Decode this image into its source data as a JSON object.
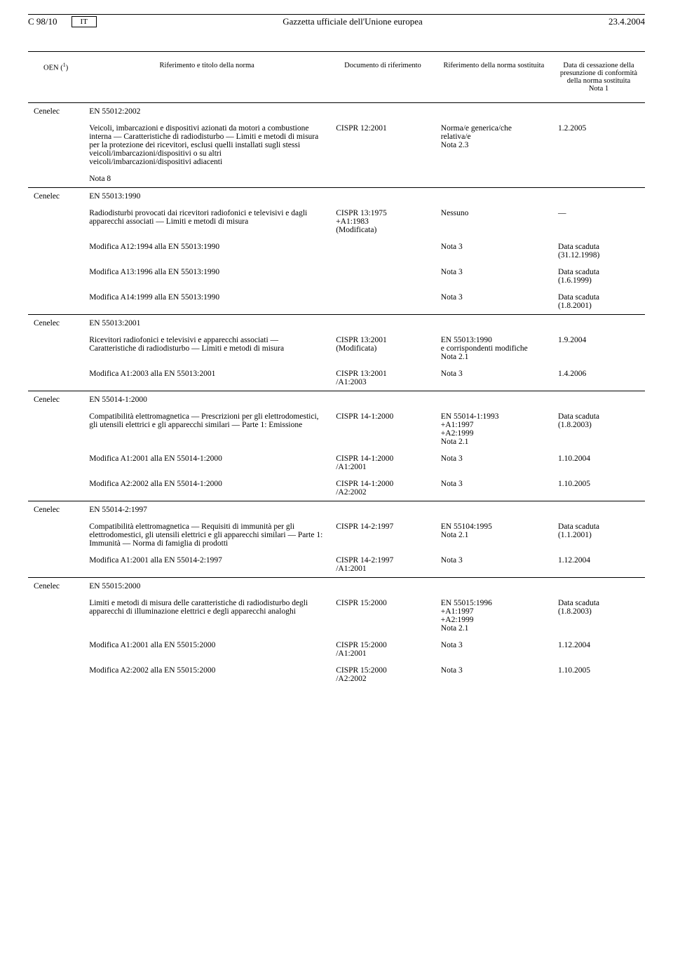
{
  "header": {
    "pageRef": "C 98/10",
    "lang": "IT",
    "journal": "Gazzetta ufficiale dell'Unione europea",
    "date": "23.4.2004"
  },
  "columns": {
    "oen": "OEN (",
    "oenSup": "1",
    "oenClose": ")",
    "title": "Riferimento e titolo della norma",
    "docref": "Documento di riferimento",
    "norma": "Riferimento della norma sostituita",
    "data": "Data di cessazione della presunzione di conformità della norma sostituita",
    "dataNote": "Nota 1"
  },
  "sections": [
    {
      "oen": "Cenelec",
      "standard": "EN 55012:2002",
      "rows": [
        {
          "title": "Veicoli, imbarcazioni e dispositivi azionati da motori a combustione interna — Caratteristiche di radiodisturbo — Limiti e metodi di misura per la protezione dei ricevitori, esclusi quelli installati sugli stessi veicoli/imbarcazioni/dispositivi o su altri veicoli/imbarcazioni/dispositivi adiacenti",
          "docref": "CISPR 12:2001",
          "norma": "Norma/e generica/che relativa/e Nota 2.3",
          "data": "1.2.2005"
        }
      ],
      "note": "Nota 8"
    },
    {
      "oen": "Cenelec",
      "standard": "EN 55013:1990",
      "rows": [
        {
          "title": "Radiodisturbi provocati dai ricevitori radiofonici e televisivi e dagli apparecchi associati — Limiti e metodi di misura",
          "docref": "CISPR 13:1975 +A1:1983 (Modificata)",
          "norma": "Nessuno",
          "data": "—"
        },
        {
          "title": "Modifica A12:1994 alla EN 55013:1990",
          "docref": "",
          "norma": "Nota 3",
          "data": "Data scaduta (31.12.1998)"
        },
        {
          "title": "Modifica A13:1996 alla EN 55013:1990",
          "docref": "",
          "norma": "Nota 3",
          "data": "Data scaduta (1.6.1999)"
        },
        {
          "title": "Modifica A14:1999 alla EN 55013:1990",
          "docref": "",
          "norma": "Nota 3",
          "data": "Data scaduta (1.8.2001)"
        }
      ]
    },
    {
      "oen": "Cenelec",
      "standard": "EN 55013:2001",
      "rows": [
        {
          "title": "Ricevitori radiofonici e televisivi e apparecchi associati — Caratteristiche di radiodisturbo — Limiti e metodi di misura",
          "docref": "CISPR 13:2001 (Modificata)",
          "norma": "EN 55013:1990 e corrispondenti modifiche Nota 2.1",
          "data": "1.9.2004"
        },
        {
          "title": "Modifica A1:2003 alla EN 55013:2001",
          "docref": "CISPR 13:2001 /A1:2003",
          "norma": "Nota 3",
          "data": "1.4.2006"
        }
      ]
    },
    {
      "oen": "Cenelec",
      "standard": "EN 55014-1:2000",
      "rows": [
        {
          "title": "Compatibilità elettromagnetica — Prescrizioni per gli elettrodomestici, gli utensili elettrici e gli apparecchi similari — Parte 1: Emissione",
          "docref": "CISPR 14-1:2000",
          "norma": "EN 55014-1:1993 +A1:1997 +A2:1999 Nota 2.1",
          "data": "Data scaduta (1.8.2003)"
        },
        {
          "title": "Modifica A1:2001 alla EN 55014-1:2000",
          "docref": "CISPR 14-1:2000 /A1:2001",
          "norma": "Nota 3",
          "data": "1.10.2004"
        },
        {
          "title": "Modifica A2:2002 alla EN 55014-1:2000",
          "docref": "CISPR 14-1:2000 /A2:2002",
          "norma": "Nota 3",
          "data": "1.10.2005"
        }
      ]
    },
    {
      "oen": "Cenelec",
      "standard": "EN 55014-2:1997",
      "rows": [
        {
          "title": "Compatibilità elettromagnetica — Requisiti di immunità per gli elettrodomestici, gli utensili elettrici e gli apparecchi similari — Parte 1: Immunità — Norma di famiglia di prodotti",
          "docref": "CISPR 14-2:1997",
          "norma": "EN 55104:1995 Nota 2.1",
          "data": "Data scaduta (1.1.2001)"
        },
        {
          "title": "Modifica A1:2001 alla EN 55014-2:1997",
          "docref": "CISPR 14-2:1997 /A1:2001",
          "norma": "Nota 3",
          "data": "1.12.2004"
        }
      ]
    },
    {
      "oen": "Cenelec",
      "standard": "EN 55015:2000",
      "rows": [
        {
          "title": "Limiti e metodi di misura delle caratteristiche di radiodisturbo degli apparecchi di illuminazione elettrici e degli apparecchi analoghi",
          "docref": "CISPR 15:2000",
          "norma": "EN 55015:1996 +A1:1997 +A2:1999 Nota 2.1",
          "data": "Data scaduta (1.8.2003)"
        },
        {
          "title": "Modifica A1:2001 alla EN 55015:2000",
          "docref": "CISPR 15:2000 /A1:2001",
          "norma": "Nota 3",
          "data": "1.12.2004"
        },
        {
          "title": "Modifica A2:2002 alla EN 55015:2000",
          "docref": "CISPR 15:2000 /A2:2002",
          "norma": "Nota 3",
          "data": "1.10.2005"
        }
      ]
    }
  ]
}
